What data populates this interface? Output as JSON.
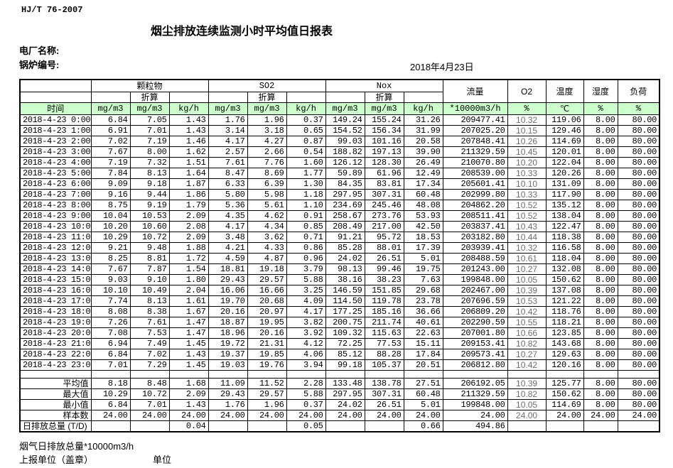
{
  "header": {
    "standard_no": "HJ/T  76-2007",
    "title": "烟尘排放连续监测小时平均值日报表",
    "plant_label": "电厂名称:",
    "boiler_label": "锅炉编号:",
    "date": "2018年4月23日"
  },
  "table": {
    "time_label": "时间",
    "conv_label": "折算",
    "groups": [
      "颗粒物",
      "SO2",
      "Nox"
    ],
    "single_cols": [
      "流量",
      "O2",
      "温度",
      "湿度",
      "负荷"
    ],
    "units": [
      "mg/m3",
      "mg/m3",
      "kg/h",
      "mg/m3",
      "mg/m3",
      "kg/h",
      "mg/m3",
      "mg/m3",
      "kg/h",
      "*10000m3/h",
      "%",
      "℃",
      "%",
      "%"
    ],
    "rows": [
      {
        "time": "2018-4-23 0:00",
        "values": [
          "6.84",
          "7.05",
          "1.43",
          "1.76",
          "1.96",
          "0.37",
          "149.24",
          "155.24",
          "31.26",
          "209477.41",
          "10.32",
          "119.06",
          "8.00",
          "80.00"
        ]
      },
      {
        "time": "2018-4-23 1:00",
        "values": [
          "6.91",
          "7.01",
          "1.43",
          "3.14",
          "3.18",
          "0.65",
          "154.52",
          "156.34",
          "31.99",
          "207025.20",
          "10.15",
          "129.46",
          "8.00",
          "80.00"
        ]
      },
      {
        "time": "2018-4-23 2:00",
        "values": [
          "7.02",
          "7.19",
          "1.46",
          "4.17",
          "4.27",
          "0.87",
          "99.03",
          "101.16",
          "20.58",
          "207848.41",
          "10.26",
          "114.69",
          "8.00",
          "80.00"
        ]
      },
      {
        "time": "2018-4-23 3:00",
        "values": [
          "7.67",
          "8.00",
          "1.62",
          "2.57",
          "2.66",
          "0.54",
          "188.82",
          "197.13",
          "39.90",
          "211329.59",
          "10.45",
          "120.01",
          "8.00",
          "80.00"
        ]
      },
      {
        "time": "2018-4-23 4:00",
        "values": [
          "7.19",
          "7.32",
          "1.51",
          "7.61",
          "7.76",
          "1.60",
          "126.12",
          "128.30",
          "26.49",
          "210070.80",
          "10.20",
          "122.04",
          "8.00",
          "80.00"
        ]
      },
      {
        "time": "2018-4-23 5:00",
        "values": [
          "7.84",
          "8.13",
          "1.64",
          "8.47",
          "8.69",
          "1.77",
          "59.89",
          "61.96",
          "12.49",
          "208539.00",
          "10.33",
          "120.26",
          "8.00",
          "80.00"
        ]
      },
      {
        "time": "2018-4-23 6:00",
        "values": [
          "9.09",
          "9.18",
          "1.87",
          "6.33",
          "6.39",
          "1.30",
          "84.35",
          "83.81",
          "17.34",
          "205601.41",
          "10.10",
          "131.09",
          "8.00",
          "80.00"
        ]
      },
      {
        "time": "2018-4-23 7:00",
        "values": [
          "9.16",
          "9.44",
          "1.86",
          "5.80",
          "5.98",
          "1.18",
          "297.95",
          "307.31",
          "60.48",
          "202999.80",
          "10.33",
          "117.90",
          "8.00",
          "80.00"
        ]
      },
      {
        "time": "2018-4-23 8:00",
        "values": [
          "8.75",
          "9.19",
          "1.79",
          "5.36",
          "5.61",
          "1.10",
          "234.69",
          "245.46",
          "48.08",
          "204862.20",
          "10.52",
          "135.12",
          "8.00",
          "80.00"
        ]
      },
      {
        "time": "2018-4-23 9:00",
        "values": [
          "10.04",
          "10.53",
          "2.09",
          "4.35",
          "4.62",
          "0.91",
          "258.67",
          "273.76",
          "53.93",
          "208511.41",
          "10.52",
          "138.04",
          "8.00",
          "80.00"
        ]
      },
      {
        "time": "2018-4-23 10:00",
        "values": [
          "10.20",
          "10.60",
          "2.08",
          "4.17",
          "4.34",
          "0.85",
          "208.49",
          "217.00",
          "42.50",
          "203837.41",
          "10.43",
          "122.47",
          "8.00",
          "80.00"
        ]
      },
      {
        "time": "2018-4-23 11:00",
        "values": [
          "10.29",
          "10.72",
          "2.09",
          "3.48",
          "3.62",
          "0.71",
          "91.21",
          "95.72",
          "18.53",
          "203182.80",
          "10.44",
          "118.38",
          "8.00",
          "80.00"
        ]
      },
      {
        "time": "2018-4-23 12:00",
        "values": [
          "9.21",
          "9.48",
          "1.88",
          "4.21",
          "4.33",
          "0.86",
          "85.28",
          "88.01",
          "17.39",
          "203939.41",
          "10.32",
          "116.58",
          "8.00",
          "80.00"
        ]
      },
      {
        "time": "2018-4-23 13:00",
        "values": [
          "8.25",
          "8.81",
          "1.72",
          "4.59",
          "4.87",
          "0.96",
          "24.02",
          "26.51",
          "5.01",
          "208488.59",
          "10.61",
          "118.04",
          "8.00",
          "80.00"
        ]
      },
      {
        "time": "2018-4-23 14:00",
        "values": [
          "7.67",
          "7.87",
          "1.54",
          "18.81",
          "19.18",
          "3.79",
          "98.13",
          "99.46",
          "19.75",
          "201243.00",
          "10.27",
          "132.08",
          "8.00",
          "80.00"
        ]
      },
      {
        "time": "2018-4-23 15:00",
        "values": [
          "9.03",
          "9.10",
          "1.80",
          "29.43",
          "29.57",
          "5.88",
          "38.16",
          "38.23",
          "7.63",
          "199848.00",
          "10.05",
          "150.62",
          "8.00",
          "80.00"
        ]
      },
      {
        "time": "2018-4-23 16:00",
        "values": [
          "10.10",
          "10.49",
          "2.04",
          "16.06",
          "16.66",
          "3.25",
          "146.59",
          "151.85",
          "29.68",
          "202467.00",
          "10.39",
          "137.08",
          "8.00",
          "80.00"
        ]
      },
      {
        "time": "2018-4-23 17:00",
        "values": [
          "7.74",
          "8.13",
          "1.61",
          "19.70",
          "20.68",
          "4.09",
          "114.50",
          "119.78",
          "23.78",
          "207696.59",
          "10.53",
          "121.22",
          "8.00",
          "80.00"
        ]
      },
      {
        "time": "2018-4-23 18:00",
        "values": [
          "8.08",
          "8.38",
          "1.67",
          "20.16",
          "20.97",
          "4.17",
          "177.25",
          "185.16",
          "36.66",
          "206809.20",
          "10.42",
          "118.76",
          "8.00",
          "80.00"
        ]
      },
      {
        "time": "2018-4-23 19:00",
        "values": [
          "7.26",
          "7.61",
          "1.47",
          "18.87",
          "19.95",
          "3.82",
          "200.75",
          "211.74",
          "40.61",
          "202290.59",
          "10.55",
          "118.21",
          "8.00",
          "80.00"
        ]
      },
      {
        "time": "2018-4-23 20:00",
        "values": [
          "7.08",
          "7.53",
          "1.47",
          "18.96",
          "20.16",
          "3.92",
          "109.32",
          "115.63",
          "22.63",
          "207001.80",
          "10.66",
          "123.85",
          "8.00",
          "80.00"
        ]
      },
      {
        "time": "2018-4-23 21:00",
        "values": [
          "6.94",
          "7.49",
          "1.45",
          "19.72",
          "21.31",
          "4.12",
          "72.25",
          "77.53",
          "15.11",
          "209153.41",
          "10.82",
          "143.68",
          "8.00",
          "80.00"
        ]
      },
      {
        "time": "2018-4-23 22:00",
        "values": [
          "6.84",
          "7.02",
          "1.43",
          "19.37",
          "19.85",
          "4.06",
          "85.12",
          "88.28",
          "17.84",
          "209573.41",
          "10.27",
          "129.63",
          "8.00",
          "80.00"
        ]
      },
      {
        "time": "2018-4-23 23:00",
        "values": [
          "7.01",
          "7.29",
          "1.45",
          "19.03",
          "19.76",
          "3.94",
          "99.18",
          "105.37",
          "20.51",
          "206812.80",
          "10.42",
          "120.16",
          "8.00",
          "80.00"
        ]
      }
    ],
    "summary": [
      {
        "label": "平均值",
        "values": [
          "8.18",
          "8.48",
          "1.68",
          "11.09",
          "11.52",
          "2.28",
          "133.48",
          "138.78",
          "27.51",
          "206192.05",
          "10.39",
          "125.77",
          "8.00",
          "80.00"
        ]
      },
      {
        "label": "最大值",
        "values": [
          "10.29",
          "10.72",
          "2.09",
          "29.43",
          "29.57",
          "5.88",
          "297.95",
          "307.31",
          "60.48",
          "211329.59",
          "10.82",
          "150.62",
          "8.00",
          "80.00"
        ]
      },
      {
        "label": "最小值",
        "values": [
          "6.84",
          "7.01",
          "1.43",
          "1.76",
          "1.96",
          "0.37",
          "24.02",
          "26.51",
          "5.01",
          "199848.00",
          "10.05",
          "114.69",
          "8.00",
          "80.00"
        ]
      },
      {
        "label": "样本数",
        "values": [
          "24.00",
          "24.00",
          "24.00",
          "24.00",
          "24.00",
          "24.00",
          "24.00",
          "24.00",
          "24.00",
          "24.00",
          "24.00",
          "24.00",
          "24.00",
          "24.00"
        ]
      },
      {
        "label": "日排放总量 (T/D)",
        "values": [
          "",
          "",
          "0.04",
          "",
          "",
          "0.05",
          "",
          "",
          "0.66",
          "494.86",
          "",
          "",
          "",
          ""
        ]
      }
    ]
  },
  "footer": {
    "note": "烟气日排放总量*10000m3/h",
    "report_unit_label": "上报单位（盖章）",
    "unit_label": "单位"
  }
}
